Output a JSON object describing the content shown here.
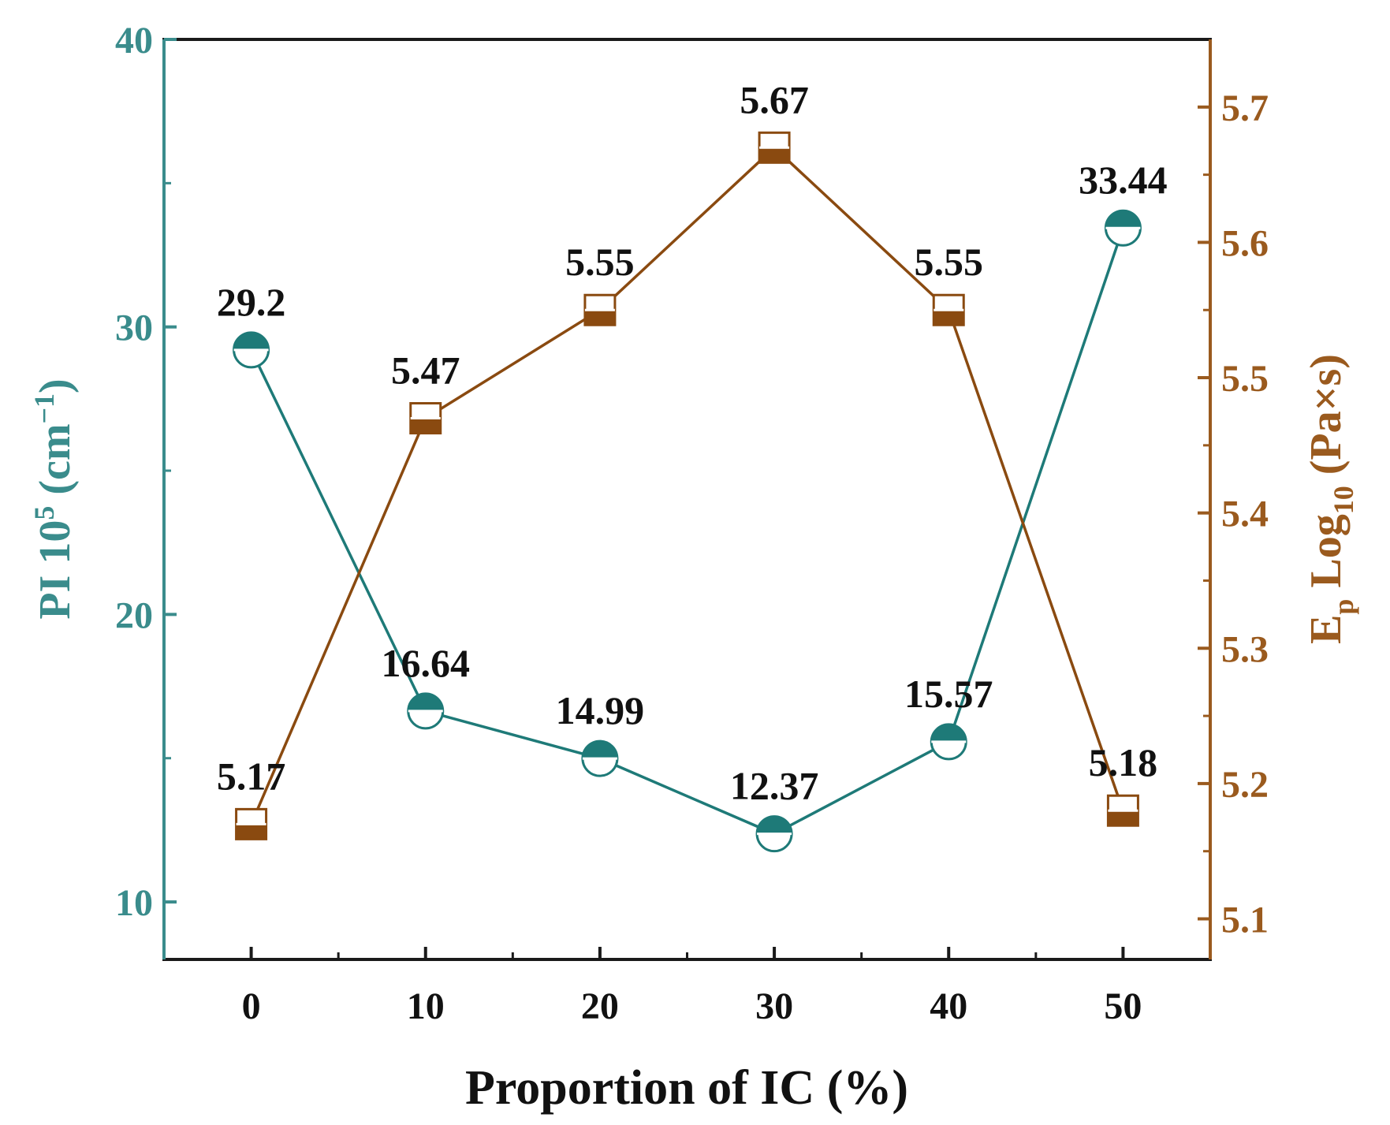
{
  "chart_data": {
    "type": "line",
    "title": "",
    "xlabel": "Proportion of IC (%)",
    "xlim": [
      -5,
      55
    ],
    "x_ticks": [
      0,
      10,
      20,
      30,
      40,
      50
    ],
    "x_tick_labels": [
      "0",
      "10",
      "20",
      "30",
      "40",
      "50"
    ],
    "y_left": {
      "label_main": "PI 10",
      "label_sup": "5",
      "label_unit_open": " (cm",
      "label_unit_sup": "−1",
      "label_unit_close": ")",
      "lim": [
        8,
        40
      ],
      "ticks": [
        10,
        20,
        30,
        40
      ],
      "tick_labels": [
        "10",
        "20",
        "30",
        "40"
      ],
      "color": "#3a8c8c"
    },
    "y_right": {
      "label_main": "E",
      "label_sub": "p",
      "label_mid": " Log",
      "label_sub2": "10",
      "label_tail": " (Pa×s)",
      "lim": [
        5.07,
        5.75
      ],
      "ticks": [
        5.1,
        5.2,
        5.3,
        5.4,
        5.5,
        5.6,
        5.7
      ],
      "tick_labels": [
        "5.1",
        "5.2",
        "5.3",
        "5.4",
        "5.5",
        "5.6",
        "5.7"
      ],
      "color": "#9a5a1e"
    },
    "series": [
      {
        "name": "PI",
        "axis": "left",
        "marker": "half-filled-circle",
        "color": "#1e7a78",
        "x": [
          0,
          10,
          20,
          30,
          40,
          50
        ],
        "values": [
          29.2,
          16.64,
          14.99,
          12.37,
          15.57,
          33.44
        ],
        "labels": [
          "29.2",
          "16.64",
          "14.99",
          "12.37",
          "15.57",
          "33.44"
        ]
      },
      {
        "name": "Ep",
        "axis": "right",
        "marker": "half-filled-square",
        "color": "#8a4a10",
        "x": [
          0,
          10,
          20,
          30,
          40,
          50
        ],
        "values": [
          5.17,
          5.47,
          5.55,
          5.67,
          5.55,
          5.18
        ],
        "labels": [
          "5.17",
          "5.47",
          "5.55",
          "5.67",
          "5.55",
          "5.18"
        ]
      }
    ]
  }
}
